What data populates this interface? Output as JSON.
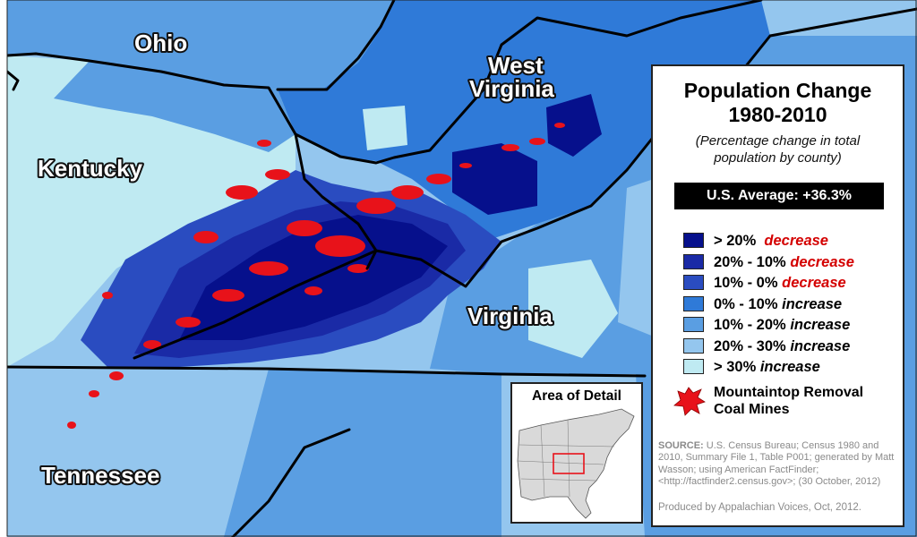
{
  "map": {
    "states": [
      "Ohio",
      "West Virginia",
      "Kentucky",
      "Virginia",
      "Tennessee"
    ],
    "state_label_west_virginia": [
      "West",
      "Virginia"
    ],
    "colors": {
      "gt20_decrease": "#06108c",
      "20_10_decrease": "#1a2aa6",
      "10_0_decrease": "#2a4cc0",
      "0_10_increase": "#2f7ad8",
      "10_20_increase": "#5a9ee2",
      "20_30_increase": "#94c6ee",
      "gt30_increase": "#bfeaf2",
      "mines": "#e8121a",
      "borders": "#000000"
    }
  },
  "legend": {
    "title_line1": "Population Change",
    "title_line2": "1980-2010",
    "subtitle_line1": "(Percentage change in total",
    "subtitle_line2": "population by county)",
    "us_average": "U.S. Average: +36.3%",
    "items": [
      {
        "range": "> 20%",
        "direction": "decrease",
        "swatch": "#06108c"
      },
      {
        "range": "20% - 10%",
        "direction": "decrease",
        "swatch": "#1a2aa6"
      },
      {
        "range": "10% - 0%",
        "direction": "decrease",
        "swatch": "#2a4cc0"
      },
      {
        "range": "0% - 10%",
        "direction": "increase",
        "swatch": "#2f7ad8"
      },
      {
        "range": "10% - 20%",
        "direction": "increase",
        "swatch": "#5a9ee2"
      },
      {
        "range": "20% - 30%",
        "direction": "increase",
        "swatch": "#94c6ee"
      },
      {
        "range": "> 30%",
        "direction": "increase",
        "swatch": "#bfeaf2"
      }
    ],
    "mtr_line1": "Mountaintop Removal",
    "mtr_line2": "Coal Mines",
    "source_label": "SOURCE:",
    "source_text": "U.S. Census Bureau; Census 1980 and 2010, Summary File 1, Table P001; generated by Matt Wasson; using American FactFinder; <http://factfinder2.census.gov>; (30 October, 2012)",
    "produced_by": "Produced by Appalachian Voices, Oct, 2012."
  },
  "inset": {
    "title": "Area of Detail"
  }
}
